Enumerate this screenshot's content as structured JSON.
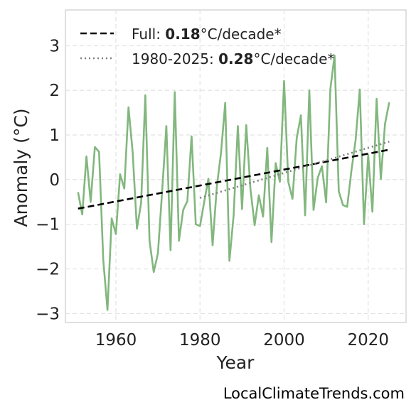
{
  "chart_data": {
    "type": "line",
    "title": "",
    "xlabel": "Year",
    "ylabel": "Anomaly (°C)",
    "xlim": [
      1948,
      2029
    ],
    "ylim": [
      -3.2,
      3.8
    ],
    "xticks": [
      1960,
      1980,
      2000,
      2020
    ],
    "yticks": [
      -3,
      -2,
      -1,
      0,
      1,
      2,
      3
    ],
    "xtick_labels": [
      "1960",
      "1980",
      "2000",
      "2020"
    ],
    "ytick_labels": [
      "−3",
      "−2",
      "−1",
      "0",
      "1",
      "2",
      "3"
    ],
    "grid": true,
    "legend_position": "top-left",
    "series": [
      {
        "name": "",
        "style": "solid",
        "color": "#82b77e",
        "x": [
          1951,
          1952,
          1953,
          1954,
          1955,
          1956,
          1957,
          1958,
          1959,
          1960,
          1961,
          1962,
          1963,
          1964,
          1965,
          1966,
          1967,
          1968,
          1969,
          1970,
          1971,
          1972,
          1973,
          1974,
          1975,
          1976,
          1977,
          1978,
          1979,
          1980,
          1981,
          1982,
          1983,
          1984,
          1985,
          1986,
          1987,
          1988,
          1989,
          1990,
          1991,
          1992,
          1993,
          1994,
          1995,
          1996,
          1997,
          1998,
          1999,
          2000,
          2001,
          2002,
          2003,
          2004,
          2005,
          2006,
          2007,
          2008,
          2009,
          2010,
          2011,
          2012,
          2013,
          2014,
          2015,
          2016,
          2017,
          2018,
          2019,
          2020,
          2021,
          2022,
          2023,
          2024,
          2025
        ],
        "y": [
          -0.28,
          -0.78,
          0.52,
          -0.5,
          0.73,
          0.62,
          -1.8,
          -2.92,
          -0.87,
          -1.22,
          0.12,
          -0.2,
          1.62,
          0.6,
          -1.1,
          -0.52,
          1.89,
          -1.37,
          -2.07,
          -1.65,
          -0.26,
          1.2,
          -1.58,
          1.96,
          -1.37,
          -0.68,
          -0.48,
          0.97,
          -1.0,
          -1.04,
          -0.5,
          0.02,
          -1.47,
          -0.16,
          0.6,
          1.72,
          -1.82,
          -0.8,
          1.2,
          -0.66,
          1.22,
          -0.21,
          -1.02,
          -0.35,
          -0.83,
          0.71,
          -1.4,
          0.37,
          -0.05,
          2.21,
          -0.05,
          -0.43,
          0.93,
          1.44,
          -0.8,
          2.0,
          -0.68,
          0.04,
          0.3,
          -0.51,
          2.03,
          2.78,
          -0.26,
          -0.57,
          -0.61,
          0.19,
          0.88,
          2.02,
          -1.0,
          0.55,
          -0.72,
          1.81,
          0.01,
          1.25,
          1.73
        ]
      },
      {
        "name": "Full",
        "style": "dashed",
        "color": "#000000",
        "x": [
          1951,
          2025
        ],
        "y": [
          -0.65,
          0.67
        ]
      },
      {
        "name": "1980-2025",
        "style": "dotted",
        "color": "#808080",
        "x": [
          1980,
          2025
        ],
        "y": [
          -0.41,
          0.85
        ]
      }
    ],
    "legend": [
      {
        "prefix": "Full: ",
        "value": "0.18",
        "suffix": "°C/decade*",
        "style": "dashed",
        "color": "#000000"
      },
      {
        "prefix": "1980-2025: ",
        "value": "0.28",
        "suffix": "°C/decade*",
        "style": "dotted",
        "color": "#808080"
      }
    ]
  },
  "source_label": "LocalClimateTrends.com"
}
